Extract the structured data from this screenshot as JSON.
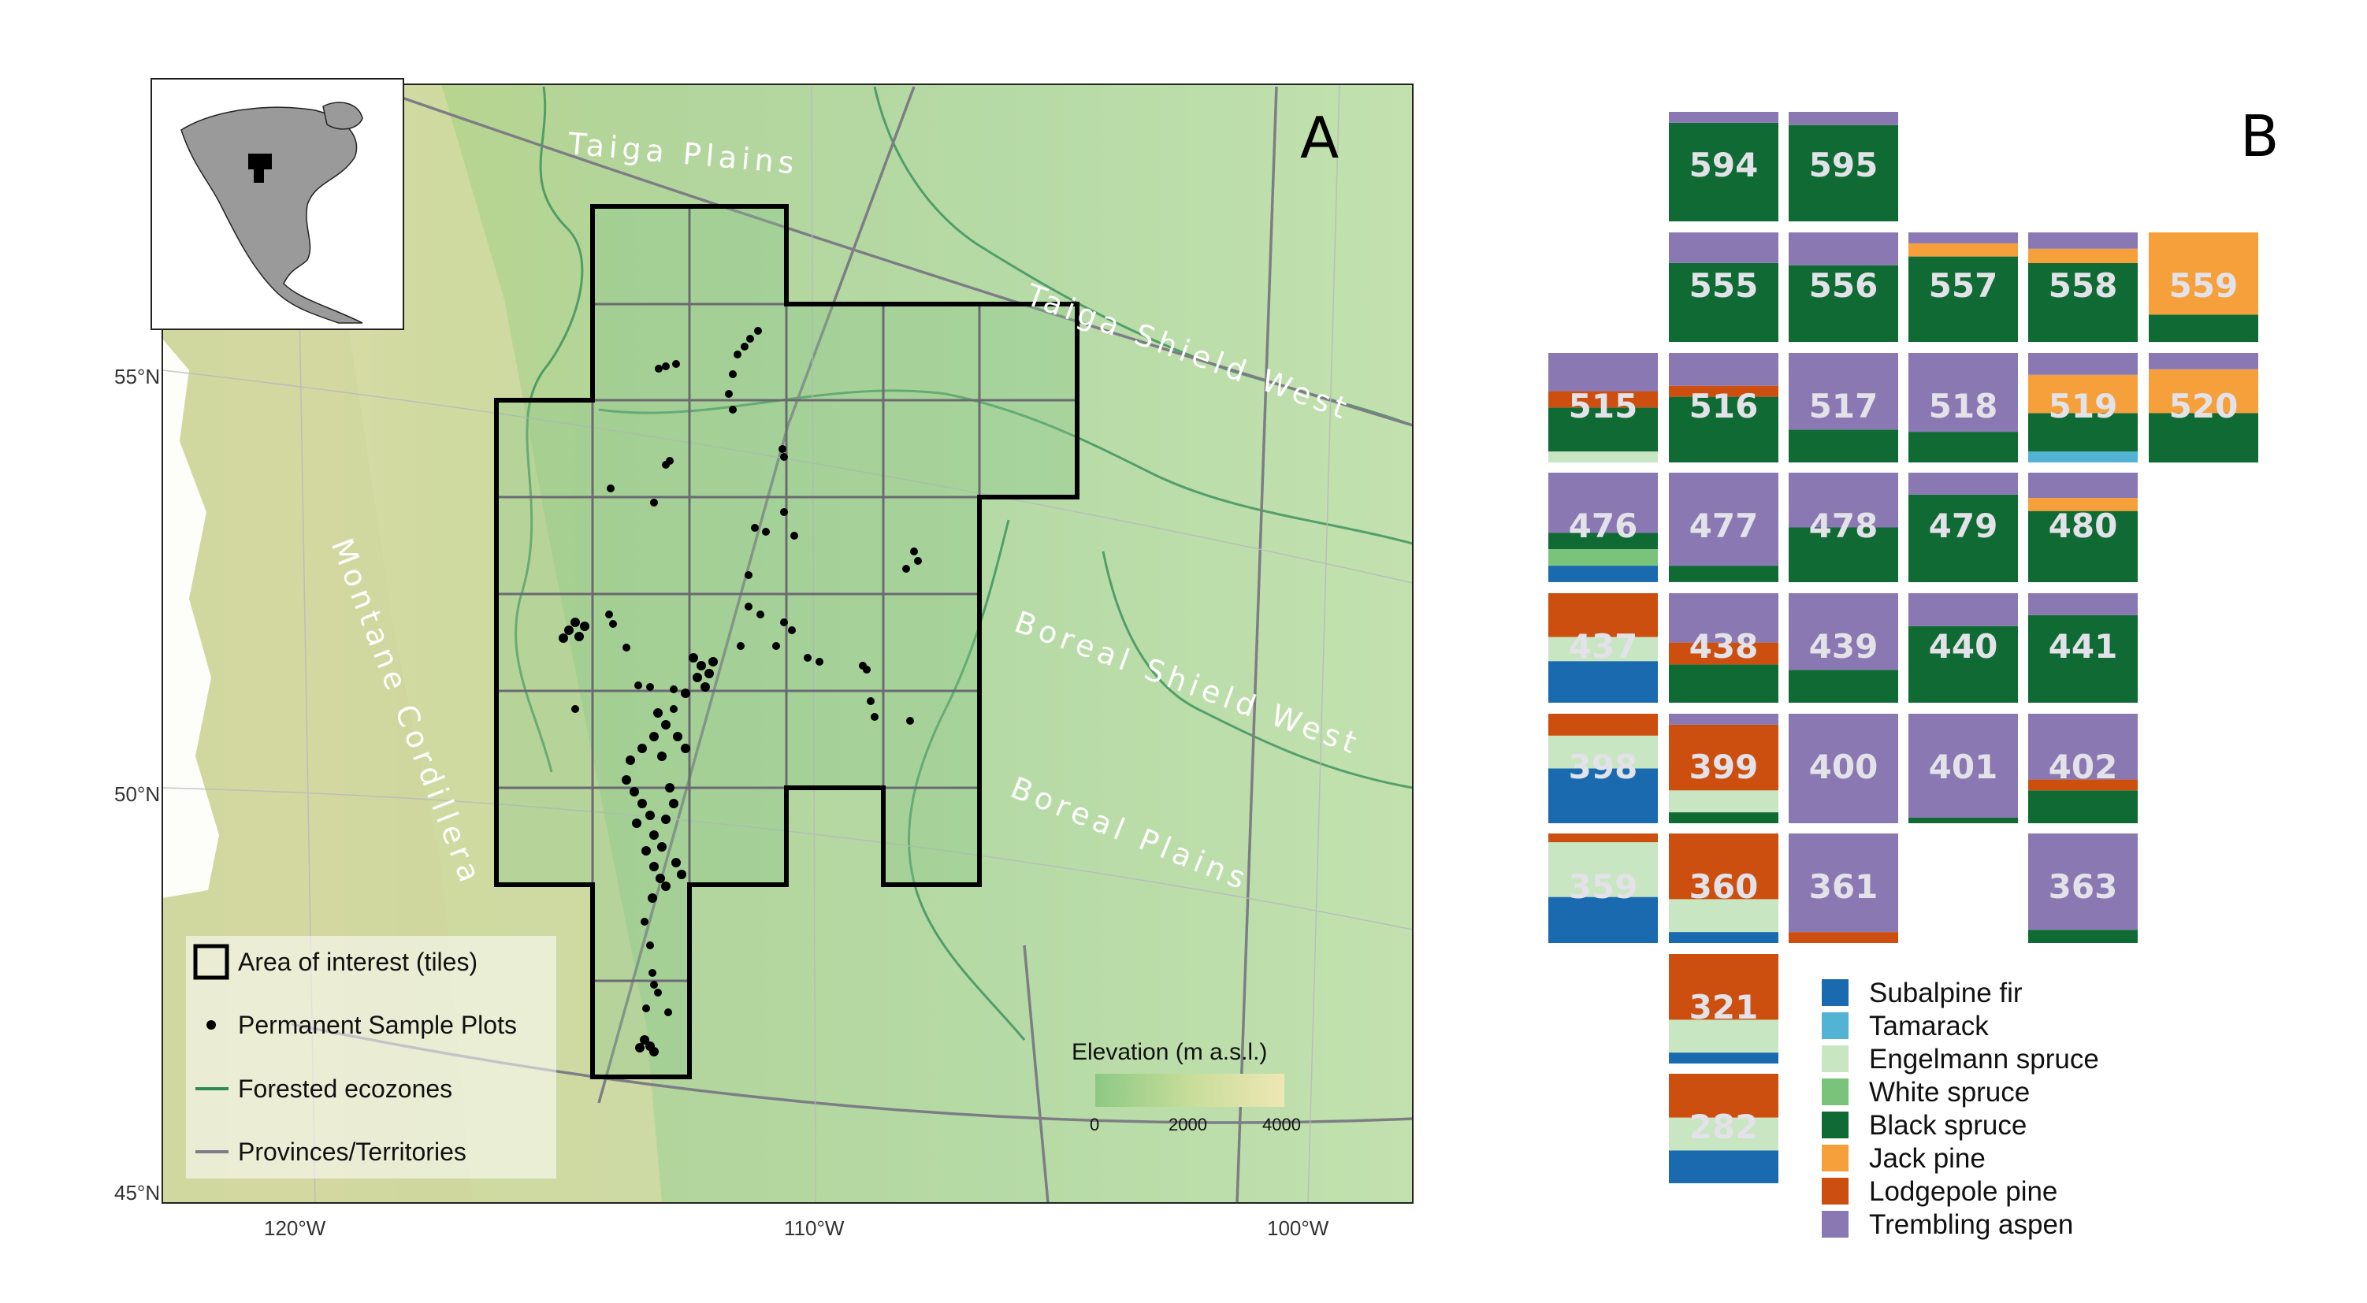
{
  "panel_a": {
    "letter": "A",
    "regions": [
      "Taiga Plains",
      "Taiga Shield West",
      "Boreal Shield West",
      "Boreal Plains",
      "Montane Cordillera"
    ],
    "lat_labels": [
      "55°N",
      "50°N",
      "45°N"
    ],
    "lon_labels": [
      "120°W",
      "110°W",
      "100°W"
    ],
    "legend": {
      "aoi": "Area of interest (tiles)",
      "psp": "Permanent Sample Plots",
      "ecozones": "Forested ecozones",
      "provinces": "Provinces/Territories"
    },
    "elevation": {
      "title": "Elevation (m a.s.l.)",
      "ticks": [
        "0",
        "2000",
        "4000"
      ]
    }
  },
  "panel_b": {
    "letter": "B",
    "species": [
      {
        "name": "Subalpine fir",
        "color": "#1a6ab0"
      },
      {
        "name": "Tamarack",
        "color": "#52b3d4"
      },
      {
        "name": "Engelmann spruce",
        "color": "#c7e6c1"
      },
      {
        "name": "White spruce",
        "color": "#79c37b"
      },
      {
        "name": "Black spruce",
        "color": "#0f6b33"
      },
      {
        "name": "Jack pine",
        "color": "#f6a03c"
      },
      {
        "name": "Lodgepole pine",
        "color": "#cc4f10"
      },
      {
        "name": "Trembling aspen",
        "color": "#8a78b3"
      }
    ],
    "tiles": [
      {
        "id": "594",
        "comp": [
          [
            "BS",
            0.9
          ],
          [
            "TA",
            0.1
          ]
        ]
      },
      {
        "id": "595",
        "comp": [
          [
            "BS",
            0.88
          ],
          [
            "TA",
            0.12
          ]
        ]
      },
      {
        "id": "555",
        "comp": [
          [
            "BS",
            0.72
          ],
          [
            "TA",
            0.28
          ]
        ]
      },
      {
        "id": "556",
        "comp": [
          [
            "BS",
            0.7
          ],
          [
            "TA",
            0.3
          ]
        ]
      },
      {
        "id": "557",
        "comp": [
          [
            "BS",
            0.78
          ],
          [
            "JP",
            0.12
          ],
          [
            "TA",
            0.1
          ]
        ]
      },
      {
        "id": "558",
        "comp": [
          [
            "BS",
            0.72
          ],
          [
            "JP",
            0.13
          ],
          [
            "TA",
            0.15
          ]
        ]
      },
      {
        "id": "559",
        "comp": [
          [
            "BS",
            0.25
          ],
          [
            "JP",
            0.75
          ]
        ]
      },
      {
        "id": "515",
        "comp": [
          [
            "ES",
            0.1
          ],
          [
            "BS",
            0.4
          ],
          [
            "LP",
            0.15
          ],
          [
            "TA",
            0.35
          ]
        ]
      },
      {
        "id": "516",
        "comp": [
          [
            "BS",
            0.6
          ],
          [
            "LP",
            0.1
          ],
          [
            "TA",
            0.3
          ]
        ]
      },
      {
        "id": "517",
        "comp": [
          [
            "BS",
            0.3
          ],
          [
            "TA",
            0.7
          ]
        ]
      },
      {
        "id": "518",
        "comp": [
          [
            "BS",
            0.28
          ],
          [
            "TA",
            0.72
          ]
        ]
      },
      {
        "id": "519",
        "comp": [
          [
            "TM",
            0.1
          ],
          [
            "BS",
            0.35
          ],
          [
            "JP",
            0.35
          ],
          [
            "TA",
            0.2
          ]
        ]
      },
      {
        "id": "520",
        "comp": [
          [
            "BS",
            0.45
          ],
          [
            "JP",
            0.4
          ],
          [
            "TA",
            0.15
          ]
        ]
      },
      {
        "id": "476",
        "comp": [
          [
            "SF",
            0.15
          ],
          [
            "WS",
            0.15
          ],
          [
            "BS",
            0.15
          ],
          [
            "TA",
            0.55
          ]
        ]
      },
      {
        "id": "477",
        "comp": [
          [
            "BS",
            0.15
          ],
          [
            "TA",
            0.85
          ]
        ]
      },
      {
        "id": "478",
        "comp": [
          [
            "BS",
            0.5
          ],
          [
            "TA",
            0.5
          ]
        ]
      },
      {
        "id": "479",
        "comp": [
          [
            "BS",
            0.8
          ],
          [
            "TA",
            0.2
          ]
        ]
      },
      {
        "id": "480",
        "comp": [
          [
            "BS",
            0.65
          ],
          [
            "JP",
            0.12
          ],
          [
            "TA",
            0.23
          ]
        ]
      },
      {
        "id": "437",
        "comp": [
          [
            "SF",
            0.38
          ],
          [
            "ES",
            0.22
          ],
          [
            "LP",
            0.4
          ]
        ]
      },
      {
        "id": "438",
        "comp": [
          [
            "BS",
            0.35
          ],
          [
            "LP",
            0.2
          ],
          [
            "TA",
            0.45
          ]
        ]
      },
      {
        "id": "439",
        "comp": [
          [
            "BS",
            0.3
          ],
          [
            "TA",
            0.7
          ]
        ]
      },
      {
        "id": "440",
        "comp": [
          [
            "BS",
            0.7
          ],
          [
            "TA",
            0.3
          ]
        ]
      },
      {
        "id": "441",
        "comp": [
          [
            "BS",
            0.8
          ],
          [
            "TA",
            0.2
          ]
        ]
      },
      {
        "id": "398",
        "comp": [
          [
            "SF",
            0.5
          ],
          [
            "ES",
            0.3
          ],
          [
            "LP",
            0.2
          ]
        ]
      },
      {
        "id": "399",
        "comp": [
          [
            "BS",
            0.1
          ],
          [
            "ES",
            0.2
          ],
          [
            "LP",
            0.6
          ],
          [
            "TA",
            0.1
          ]
        ]
      },
      {
        "id": "400",
        "comp": [
          [
            "TA",
            1.0
          ]
        ]
      },
      {
        "id": "401",
        "comp": [
          [
            "BS",
            0.05
          ],
          [
            "TA",
            0.95
          ]
        ]
      },
      {
        "id": "402",
        "comp": [
          [
            "BS",
            0.3
          ],
          [
            "LP",
            0.1
          ],
          [
            "TA",
            0.6
          ]
        ]
      },
      {
        "id": "359",
        "comp": [
          [
            "SF",
            0.42
          ],
          [
            "ES",
            0.5
          ],
          [
            "LP",
            0.08
          ]
        ]
      },
      {
        "id": "360",
        "comp": [
          [
            "SF",
            0.1
          ],
          [
            "ES",
            0.3
          ],
          [
            "LP",
            0.6
          ]
        ]
      },
      {
        "id": "361",
        "comp": [
          [
            "LP",
            0.1
          ],
          [
            "TA",
            0.9
          ]
        ]
      },
      {
        "id": "363",
        "comp": [
          [
            "BS",
            0.12
          ],
          [
            "TA",
            0.88
          ]
        ]
      },
      {
        "id": "321",
        "comp": [
          [
            "SF",
            0.1
          ],
          [
            "ES",
            0.3
          ],
          [
            "LP",
            0.6
          ]
        ]
      },
      {
        "id": "282",
        "comp": [
          [
            "SF",
            0.3
          ],
          [
            "ES",
            0.3
          ],
          [
            "LP",
            0.4
          ]
        ]
      }
    ]
  }
}
